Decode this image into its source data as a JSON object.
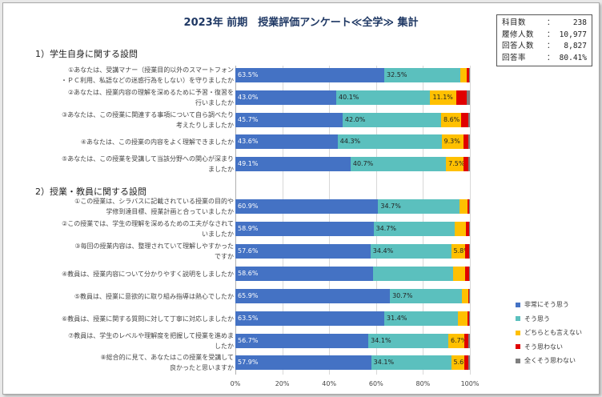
{
  "chart_data": {
    "type": "bar",
    "orientation": "horizontal",
    "stacked": true,
    "title": "2023年 前期　授業評価アンケート≪全学≫ 集計",
    "xlim": [
      0,
      100
    ],
    "x_ticks": [
      "0%",
      "20%",
      "40%",
      "60%",
      "80%",
      "100%"
    ],
    "legend_position": "right",
    "series": [
      {
        "name": "非常にそう思う",
        "color": "#4472c4"
      },
      {
        "name": "そう思う",
        "color": "#5bc0be"
      },
      {
        "name": "どちらとも言えない",
        "color": "#ffc000"
      },
      {
        "name": "そう思わない",
        "color": "#e00000"
      },
      {
        "name": "全くそう思わない",
        "color": "#7f7f7f"
      }
    ],
    "sections": [
      {
        "title": "1）学生自身に関する設問",
        "questions": [
          {
            "label": [
              "①あなたは、受講マナー（授業目的以外のスマートフォン",
              "・ＰＣ利用、私語などの迷惑行為をしない）を守りましたか"
            ],
            "values": [
              63.5,
              32.5,
              2.6,
              1.0,
              0.4
            ],
            "labels": [
              "63.5%",
              "32.5%",
              "",
              "",
              ""
            ]
          },
          {
            "label": [
              "②あなたは、授業内容の理解を深めるために予習・復習を",
              "行いましたか"
            ],
            "values": [
              43.0,
              40.1,
              11.1,
              4.3,
              1.5
            ],
            "labels": [
              "43.0%",
              "40.1%",
              "11.1%",
              "",
              ""
            ]
          },
          {
            "label": [
              "③あなたは、この授業に関連する事項について自ら調べたり",
              "考えたりしましたか"
            ],
            "values": [
              45.7,
              42.0,
              8.6,
              2.9,
              0.8
            ],
            "labels": [
              "45.7%",
              "42.0%",
              "8.6%",
              "",
              ""
            ]
          },
          {
            "label": [
              "④あなたは、この授業の内容をよく理解できましたか"
            ],
            "values": [
              43.6,
              44.3,
              9.3,
              2.2,
              0.6
            ],
            "labels": [
              "43.6%",
              "44.3%",
              "9.3%",
              "",
              ""
            ]
          },
          {
            "label": [
              "⑤あなたは、この授業を受講して当該分野への関心が深まり",
              "ましたか"
            ],
            "values": [
              49.1,
              40.7,
              7.5,
              2.1,
              0.6
            ],
            "labels": [
              "49.1%",
              "40.7%",
              "7.5%",
              "",
              ""
            ]
          }
        ]
      },
      {
        "title": "2）授業・教員に関する設問",
        "questions": [
          {
            "label": [
              "①この授業は、シラバスに記載されている授業の目的や",
              "学修到達目標、授業計画と合っていましたか"
            ],
            "values": [
              60.9,
              34.7,
              3.5,
              0.7,
              0.2
            ],
            "labels": [
              "60.9%",
              "34.7%",
              "",
              "",
              ""
            ]
          },
          {
            "label": [
              "②この授業では、学生の理解を深めるための工夫がなされて",
              "いましたか"
            ],
            "values": [
              58.9,
              34.7,
              4.6,
              1.4,
              0.4
            ],
            "labels": [
              "58.9%",
              "34.7%",
              "",
              "",
              ""
            ]
          },
          {
            "label": [
              "③毎回の授業内容は、整理されていて理解しやすかった",
              "ですか"
            ],
            "values": [
              57.6,
              34.4,
              5.8,
              1.7,
              0.5
            ],
            "labels": [
              "57.6%",
              "34.4%",
              "5.8%",
              "",
              ""
            ]
          },
          {
            "label": [
              "④教員は、授業内容について分かりやすく説明をしましたか"
            ],
            "values": [
              58.6,
              34.1,
              5.2,
              1.6,
              0.5
            ],
            "labels": [
              "58.6%",
              "",
              "",
              "",
              ""
            ]
          },
          {
            "label": [
              "⑤教員は、授業に意欲的に取り組み指導は熱心でしたか"
            ],
            "values": [
              65.9,
              30.7,
              2.7,
              0.5,
              0.2
            ],
            "labels": [
              "65.9%",
              "30.7%",
              "",
              "",
              ""
            ]
          },
          {
            "label": [
              "⑥教員は、授業に関する質問に対して丁寧に対応しましたか"
            ],
            "values": [
              63.5,
              31.4,
              4.0,
              0.8,
              0.3
            ],
            "labels": [
              "63.5%",
              "31.4%",
              "",
              "",
              ""
            ]
          },
          {
            "label": [
              "⑦教員は、学生のレベルや理解度を把握して授業を進めま",
              "したか"
            ],
            "values": [
              56.7,
              34.1,
              6.7,
              1.9,
              0.6
            ],
            "labels": [
              "56.7%",
              "34.1%",
              "6.7%",
              "",
              ""
            ]
          },
          {
            "label": [
              "⑧総合的に見て、あなたはこの授業を受講して",
              "良かったと思いますか"
            ],
            "values": [
              57.9,
              34.1,
              5.6,
              1.8,
              0.6
            ],
            "labels": [
              "57.9%",
              "34.1%",
              "5.6%",
              "",
              ""
            ]
          }
        ]
      }
    ]
  },
  "stats": [
    {
      "label": "科目数",
      "value": "238"
    },
    {
      "label": "履修人数",
      "value": "10,977"
    },
    {
      "label": "回答人数",
      "value": "8,827"
    },
    {
      "label": "回答率",
      "value": "80.41%"
    }
  ]
}
